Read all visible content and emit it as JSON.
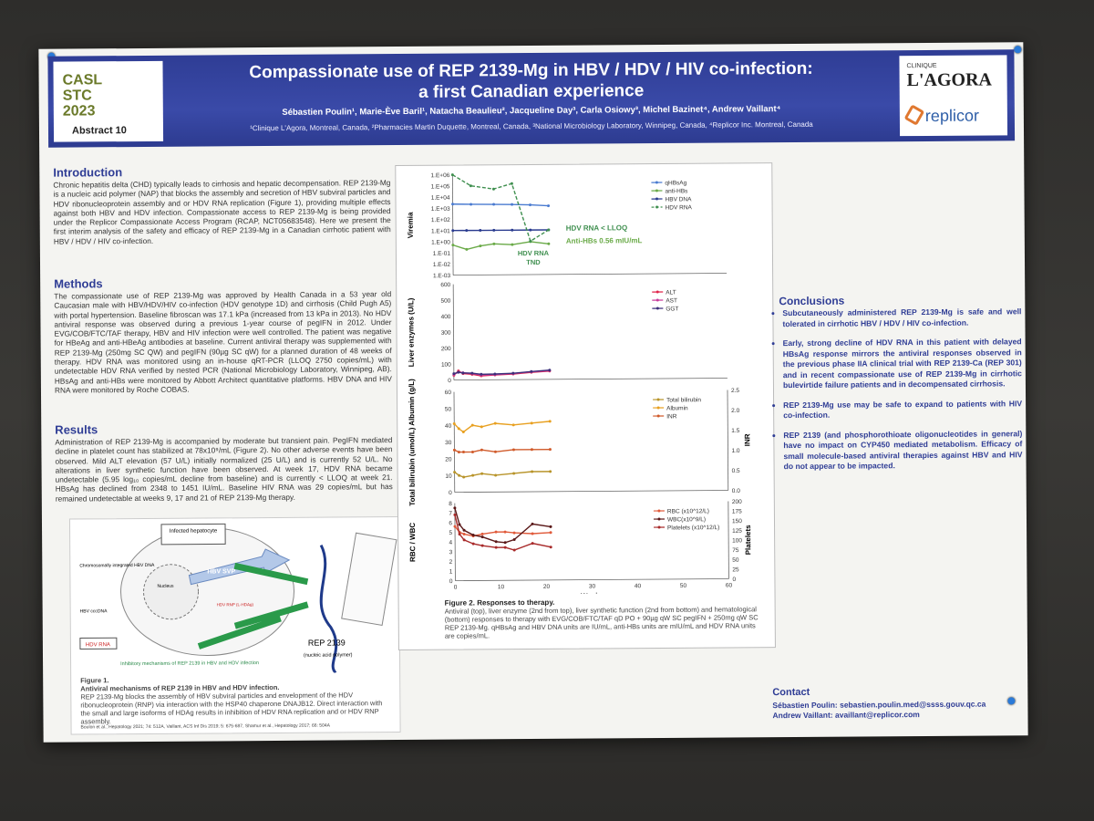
{
  "header": {
    "conference": "CASL STC 2023",
    "abstract": "Abstract 10",
    "title_line1": "Compassionate use of REP 2139-Mg in HBV / HDV / HIV co-infection:",
    "title_line2": "a first Canadian experience",
    "authors": "Sébastien Poulin¹, Marie-Ève Baril¹, Natacha Beaulieu², Jacqueline Day³, Carla Osiowy³, Michel Bazinet⁴, Andrew Vaillant⁴",
    "affiliations": "¹Clinique L'Agora, Montreal, Canada, ²Pharmacies Martin Duquette, Montreal, Canada, ³National Microbiology Laboratory, Winnipeg, Canada, ⁴Replicor Inc. Montreal, Canada",
    "logo_right_top": "CLINIQUE",
    "logo_right_name": "L'AGORA",
    "logo_replicor": "replicor"
  },
  "intro": {
    "heading": "Introduction",
    "text": "Chronic hepatitis delta (CHD) typically leads to cirrhosis and hepatic decompensation. REP 2139-Mg is a nucleic acid polymer (NAP) that blocks the assembly and secretion of HBV subviral particles and HDV ribonucleoprotein assembly and or HDV RNA replication (Figure 1), providing multiple effects against both HBV and HDV infection. Compassionate access to REP 2139-Mg is being provided under the Replicor Compassionate Access Program (RCAP, NCT05683548). Here we present the first interim analysis of the safety and efficacy of REP 2139-Mg in a Canadian cirrhotic patient with HBV / HDV / HIV co-infection."
  },
  "methods": {
    "heading": "Methods",
    "text": "The compassionate use of REP 2139-Mg was approved by Health Canada in a 53 year old Caucasian male with HBV/HDV/HIV co-infection (HDV genotype 1D) and cirrhosis (Child Pugh A5) with portal hypertension. Baseline fibroscan was 17.1 kPa (increased from 13 kPa in 2013). No HDV antiviral response was observed during a previous 1-year course of pegIFN in 2012. Under EVG/COB/FTC/TAF therapy, HBV and HIV infection were well controlled. The patient was negative for HBeAg and anti-HBeAg antibodies at baseline. Current antiviral therapy was supplemented with REP 2139-Mg (250mg SC QW) and pegIFN (90µg SC qW) for a planned duration of 48 weeks of therapy. HDV RNA was monitored using an in-house qRT-PCR (LLOQ 2750 copies/mL) with undetectable HDV RNA verified by nested PCR (National Microbiology Laboratory, Winnipeg, AB). HBsAg and anti-HBs were monitored by Abbott Architect quantitative platforms. HBV DNA and HIV RNA were monitored by Roche COBAS."
  },
  "results": {
    "heading": "Results",
    "text": "Administration of REP 2139-Mg is accompanied by moderate but transient pain. PegIFN mediated decline in platelet count has stabilized at 78x10⁹/mL (Figure 2). No other adverse events have been observed. Mild ALT elevation (57 U/L) initially normalized (25 U/L) and is currently 52 U/L. No alterations in liver synthetic function have been observed. At week 17, HDV RNA became undetectable (5.95 log₁₀ copies/mL decline from baseline) and is currently < LLOQ at week 21. HBsAg has declined from 2348 to 1451 IU/mL. Baseline HIV RNA was 29 copies/mL but has remained undetectable at weeks 9, 17 and 21 of REP 2139-Mg therapy."
  },
  "figure1": {
    "labels": {
      "hepatocyte": "Infected hepatocyte",
      "integrated": "Chromosomally integrated HBV DNA",
      "cccdna": "HBV cccDNA",
      "hdv_rna": "HDV RNA",
      "svp": "HBV SVP",
      "hdag": "HDV RNP (L-HDAg)",
      "nucleus": "Nucleus",
      "inhibitory": "Inhibitory mechanisms of REP 2139 in HBV and HDV infection",
      "rep": "REP 2139",
      "rep_sub": "(nucleic acid polymer)"
    },
    "caption_title": "Figure 1.",
    "caption_bold": "Antiviral mechanisms of REP 2139 in HBV and HDV infection.",
    "caption": "REP 2139-Mg blocks the assembly of HBV subviral particles and envelopment of the HDV ribonucleoprotein (RNP) via interaction with the HSP40 chaperone DNAJB12. Direct interaction with the small and large isoforms of HDAg results in inhibition of HDV RNA replication and or HDV RNP assembly.",
    "refs": "Boulon et al., Hepatology 2021; 74: 512A, Vaillant, ACS Inf Dis 2019; 5: 675-687, Shamur et al., Hepatology 2017; 66: 504A"
  },
  "figure2": {
    "caption_title": "Figure 2. Responses to therapy.",
    "caption": "Antiviral (top), liver enzyme (2nd from top), liver synthetic function (2nd from bottom) and hematological (bottom) responses to therapy with EVG/COB/FTC/TAF qD PO + 90µg qW SC pegIFN + 250mg qW SC REP 2139-Mg. qHBsAg and HBV DNA units are IU/mL, anti-HBs units are mIU/mL and HDV RNA units are copies/mL.",
    "annotations": {
      "hdv_lloq": "HDV RNA < LLOQ",
      "antihbs": "Anti-HBs 0.56 mIU/mL",
      "tnd_1": "HDV RNA",
      "tnd_2": "TND"
    }
  },
  "chart_data": [
    {
      "type": "line",
      "ylabel": "Viremia",
      "yscale": "log",
      "yticks": [
        "1.E+06",
        "1.E+05",
        "1.E+04",
        "1.E+03",
        "1.E+02",
        "1.E+01",
        "1.E+00",
        "1.E-01",
        "1.E-02",
        "1.E-03"
      ],
      "ylim": [
        0.001,
        1000000
      ],
      "xlim": [
        0,
        60
      ],
      "series": [
        {
          "name": "qHBsAg",
          "color": "#4a7bd0",
          "x": [
            0,
            4,
            9,
            13,
            17,
            21
          ],
          "values": [
            2348,
            2200,
            2100,
            2000,
            1800,
            1451
          ]
        },
        {
          "name": "anti-HBs",
          "color": "#6aaa48",
          "x": [
            0,
            3,
            6,
            9,
            13,
            17,
            21
          ],
          "values": [
            0.5,
            0.2,
            0.4,
            0.6,
            0.5,
            0.9,
            0.56
          ]
        },
        {
          "name": "HBV DNA",
          "color": "#2a3b8f",
          "x": [
            0,
            3,
            6,
            9,
            13,
            17,
            21
          ],
          "values": [
            10,
            10,
            10,
            10,
            10,
            10,
            10
          ]
        },
        {
          "name": "HDV RNA",
          "color": "#3f8f4f",
          "dashed": true,
          "x": [
            0,
            4,
            9,
            13,
            17,
            21
          ],
          "values": [
            1000000,
            100000,
            50000,
            150000,
            1,
            10
          ]
        }
      ]
    },
    {
      "type": "line",
      "ylabel": "Liver enzymes (U/L)",
      "yticks": [
        "0",
        "100",
        "200",
        "300",
        "400",
        "500",
        "600"
      ],
      "ylim": [
        0,
        600
      ],
      "xlim": [
        0,
        60
      ],
      "series": [
        {
          "name": "ALT",
          "color": "#e0244a",
          "x": [
            0,
            1,
            2,
            4,
            6,
            9,
            13,
            17,
            21
          ],
          "values": [
            30,
            57,
            40,
            35,
            25,
            30,
            35,
            45,
            52
          ]
        },
        {
          "name": "AST",
          "color": "#c83c9b",
          "x": [
            0,
            1,
            2,
            4,
            6,
            9,
            13,
            17,
            21
          ],
          "values": [
            35,
            50,
            45,
            40,
            30,
            32,
            38,
            48,
            55
          ]
        },
        {
          "name": "GGT",
          "color": "#3d2f7a",
          "x": [
            0,
            1,
            2,
            4,
            6,
            9,
            13,
            17,
            21
          ],
          "values": [
            40,
            48,
            44,
            42,
            35,
            36,
            40,
            50,
            58
          ]
        }
      ]
    },
    {
      "type": "line",
      "ylabel": "Total bilirubin (umol/L) Albumin (g/L)",
      "y2label": "INR",
      "yticks": [
        "0",
        "10",
        "20",
        "30",
        "40",
        "50",
        "60"
      ],
      "y2ticks": [
        "0.0",
        "0.5",
        "1.0",
        "1.5",
        "2.0",
        "2.5"
      ],
      "ylim": [
        0,
        60
      ],
      "y2lim": [
        0,
        2.5
      ],
      "xlim": [
        0,
        60
      ],
      "series": [
        {
          "name": "Total bilirubin",
          "color": "#b8942a",
          "x": [
            0,
            1,
            2,
            4,
            6,
            9,
            13,
            17,
            21
          ],
          "values": [
            12,
            10,
            9,
            10,
            11,
            10,
            11,
            12,
            12
          ]
        },
        {
          "name": "Albumin",
          "color": "#e8a020",
          "x": [
            0,
            1,
            2,
            4,
            6,
            9,
            13,
            17,
            21
          ],
          "values": [
            41,
            38,
            36,
            40,
            39,
            41,
            40,
            41,
            42
          ]
        },
        {
          "name": "INR",
          "color": "#d05a2a",
          "axis": "y2",
          "x": [
            0,
            1,
            2,
            4,
            6,
            9,
            13,
            17,
            21
          ],
          "values": [
            1.05,
            1.0,
            1.0,
            1.0,
            1.05,
            1.0,
            1.05,
            1.05,
            1.05
          ]
        }
      ]
    },
    {
      "type": "line",
      "ylabel": "RBC / WBC",
      "y2label": "Platelets",
      "xlabel": "Weeks",
      "yticks": [
        "0",
        "1",
        "2",
        "3",
        "4",
        "5",
        "6",
        "7",
        "8"
      ],
      "y2ticks": [
        "0",
        "25",
        "50",
        "75",
        "100",
        "125",
        "150",
        "175",
        "200"
      ],
      "xticks": [
        "0",
        "10",
        "20",
        "30",
        "40",
        "50",
        "60"
      ],
      "ylim": [
        0,
        8
      ],
      "y2lim": [
        0,
        200
      ],
      "xlim": [
        0,
        60
      ],
      "series": [
        {
          "name": "RBC (x10^12/L)",
          "color": "#e05a3a",
          "x": [
            0,
            1,
            2,
            4,
            6,
            9,
            11,
            13,
            17,
            21
          ],
          "values": [
            5.6,
            5.0,
            4.8,
            4.6,
            4.8,
            5.0,
            5.0,
            4.9,
            4.8,
            4.9
          ]
        },
        {
          "name": "WBC(x10^9/L)",
          "color": "#5a1818",
          "x": [
            0,
            1,
            2,
            4,
            6,
            9,
            11,
            13,
            17,
            21
          ],
          "values": [
            7.5,
            5.8,
            5.2,
            4.7,
            4.5,
            4.0,
            3.9,
            4.2,
            5.8,
            5.5
          ]
        },
        {
          "name": "Platelets (x10^12/L)",
          "color": "#a82a2a",
          "axis": "y2",
          "x": [
            0,
            1,
            2,
            4,
            6,
            9,
            11,
            13,
            17,
            21
          ],
          "values": [
            170,
            120,
            105,
            95,
            90,
            85,
            85,
            78,
            95,
            85
          ]
        }
      ]
    }
  ],
  "conclusions": {
    "heading": "Conclusions",
    "items": [
      "Subcutaneously administered REP 2139-Mg is safe and well tolerated in cirrhotic HBV / HDV / HIV co-infection.",
      "Early, strong decline of HDV RNA in this patient with delayed HBsAg response mirrors the antiviral responses observed in the previous phase IIA clinical trial with REP 2139-Ca (REP 301) and in recent compassionate use of REP 2139-Mg in cirrhotic bulevirtide failure patients and in decompensated cirrhosis.",
      "REP 2139-Mg use may be safe to expand to patients with HIV co-infection.",
      "REP 2139 (and phosphorothioate oligonucleotides in general) have no impact on CYP450 mediated metabolism. Efficacy of small molecule-based antiviral therapies against HBV and HIV do not appear to be impacted."
    ]
  },
  "contact": {
    "heading": "Contact",
    "line1": "Sébastien Poulin: sebastien.poulin.med@ssss.gouv.qc.ca",
    "line2": "Andrew Vaillant: availlant@replicor.com"
  }
}
